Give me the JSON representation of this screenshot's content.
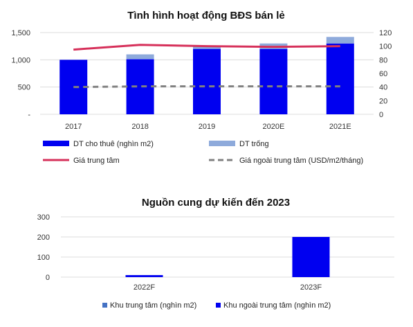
{
  "colors": {
    "blue": "#0000f0",
    "light_blue": "#8eaadb",
    "red": "#d6305a",
    "grey": "#808080",
    "grid": "#dcdcdc",
    "khu_trung_tam": "#4472c4"
  },
  "chart_data": [
    {
      "type": "bar",
      "title": "Tình hình hoạt động BĐS bán lẻ",
      "categories": [
        "2017",
        "2018",
        "2019",
        "2020E",
        "2021E"
      ],
      "ylim": [
        0,
        1500
      ],
      "y2lim": [
        0,
        120
      ],
      "y_ticks": [
        "-",
        "500",
        "1,000",
        "1,500"
      ],
      "y2_ticks": [
        "0",
        "20",
        "40",
        "60",
        "80",
        "100",
        "120"
      ],
      "grid": true,
      "legend_position": "bottom",
      "series": [
        {
          "name": "DT cho thuê (nghìn m2)",
          "kind": "bar",
          "axis": "left",
          "values": [
            1000,
            1010,
            1200,
            1200,
            1300
          ]
        },
        {
          "name": "DT trống",
          "kind": "bar-stacked",
          "axis": "left",
          "values": [
            0,
            90,
            50,
            100,
            120
          ]
        },
        {
          "name": "Giá trung tâm",
          "kind": "line",
          "axis": "right",
          "values": [
            95,
            102,
            100,
            99,
            100
          ]
        },
        {
          "name": "Giá ngoài trung tâm (USD/m2/tháng)",
          "kind": "dashed-line",
          "axis": "right",
          "values": [
            40,
            41,
            41,
            41,
            41
          ]
        }
      ]
    },
    {
      "type": "bar",
      "title": "Nguồn cung dự kiến đến 2023",
      "categories": [
        "2022F",
        "2023F"
      ],
      "ylim": [
        0,
        300
      ],
      "y_ticks": [
        "0",
        "100",
        "200",
        "300"
      ],
      "grid": true,
      "legend_position": "bottom",
      "series": [
        {
          "name": "Khu trung tâm (nghìn m2)",
          "values": [
            0,
            0
          ]
        },
        {
          "name": "Khu ngoài trung tâm (nghìn m2)",
          "values": [
            10,
            200
          ]
        }
      ]
    }
  ]
}
